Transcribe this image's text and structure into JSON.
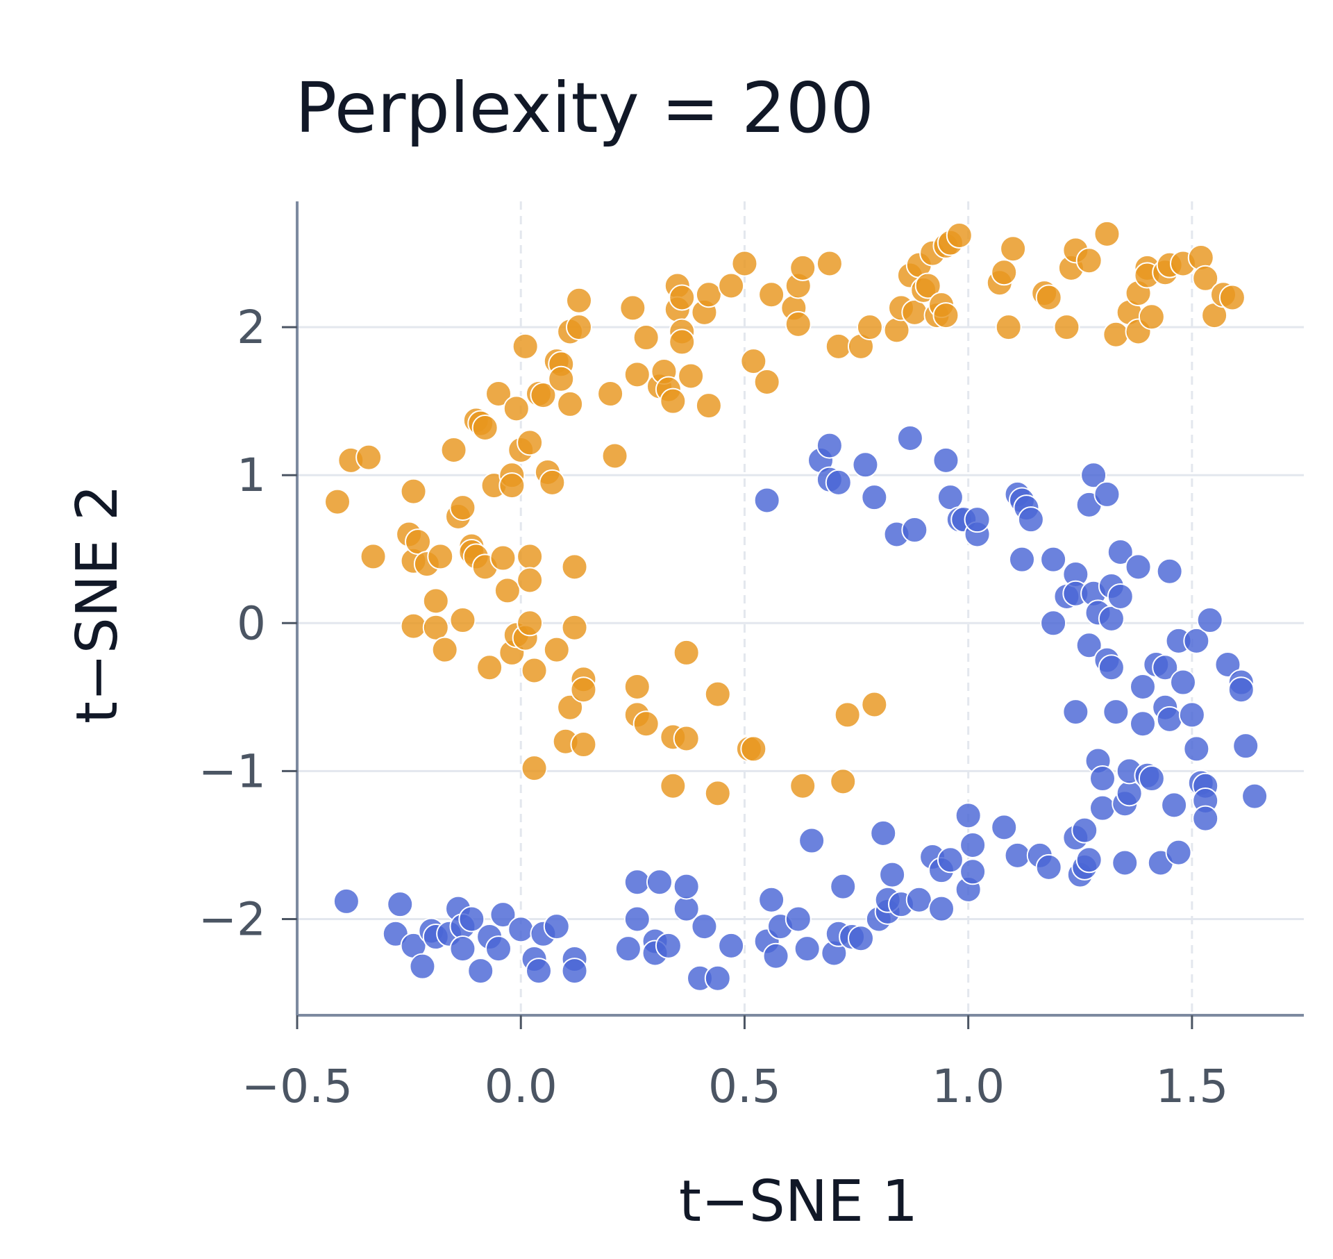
{
  "chart_data": {
    "type": "scatter",
    "title": "Perplexity = 200",
    "xlabel": "t−SNE 1",
    "ylabel": "t−SNE 2",
    "xlim": [
      -0.5,
      1.75
    ],
    "ylim": [
      -2.65,
      2.85
    ],
    "xticks": [
      -0.5,
      0.0,
      0.5,
      1.0,
      1.5
    ],
    "xtick_labels": [
      "−0.5",
      "0.0",
      "0.5",
      "1.0",
      "1.5"
    ],
    "yticks": [
      -2,
      -1,
      0,
      1,
      2
    ],
    "ytick_labels": [
      "−2",
      "−1",
      "0",
      "1",
      "2"
    ],
    "grid": true,
    "series": [
      {
        "color": "#e8961e",
        "points": [
          [
            -0.41,
            0.82
          ],
          [
            -0.38,
            1.1
          ],
          [
            -0.34,
            1.12
          ],
          [
            -0.33,
            0.45
          ],
          [
            -0.25,
            0.6
          ],
          [
            -0.24,
            0.42
          ],
          [
            -0.24,
            0.89
          ],
          [
            -0.23,
            0.55
          ],
          [
            -0.24,
            -0.02
          ],
          [
            -0.21,
            0.4
          ],
          [
            -0.19,
            0.15
          ],
          [
            -0.19,
            -0.03
          ],
          [
            -0.17,
            -0.18
          ],
          [
            -0.18,
            0.45
          ],
          [
            -0.15,
            1.17
          ],
          [
            -0.14,
            0.72
          ],
          [
            -0.13,
            0.78
          ],
          [
            -0.13,
            0.02
          ],
          [
            -0.11,
            0.52
          ],
          [
            -0.11,
            0.48
          ],
          [
            -0.1,
            1.37
          ],
          [
            -0.1,
            0.45
          ],
          [
            -0.09,
            1.35
          ],
          [
            -0.08,
            0.38
          ],
          [
            -0.08,
            1.32
          ],
          [
            -0.07,
            -0.3
          ],
          [
            -0.06,
            0.93
          ],
          [
            -0.05,
            1.55
          ],
          [
            -0.04,
            0.44
          ],
          [
            -0.03,
            0.22
          ],
          [
            -0.02,
            1.0
          ],
          [
            -0.02,
            0.93
          ],
          [
            -0.02,
            -0.2
          ],
          [
            -0.01,
            1.45
          ],
          [
            -0.01,
            -0.08
          ],
          [
            0.0,
            1.17
          ],
          [
            0.01,
            1.87
          ],
          [
            0.01,
            -0.1
          ],
          [
            0.02,
            1.22
          ],
          [
            0.02,
            0.0
          ],
          [
            0.02,
            0.45
          ],
          [
            0.02,
            0.29
          ],
          [
            0.03,
            -0.32
          ],
          [
            0.03,
            -0.98
          ],
          [
            0.04,
            1.55
          ],
          [
            0.05,
            1.54
          ],
          [
            0.06,
            1.02
          ],
          [
            0.07,
            0.95
          ],
          [
            0.08,
            1.77
          ],
          [
            0.08,
            -0.18
          ],
          [
            0.09,
            1.75
          ],
          [
            0.09,
            1.65
          ],
          [
            0.1,
            -0.8
          ],
          [
            0.11,
            1.97
          ],
          [
            0.11,
            1.48
          ],
          [
            0.11,
            -0.57
          ],
          [
            0.12,
            -0.03
          ],
          [
            0.12,
            0.38
          ],
          [
            0.13,
            2.18
          ],
          [
            0.13,
            2.0
          ],
          [
            0.14,
            -0.38
          ],
          [
            0.14,
            -0.45
          ],
          [
            0.14,
            -0.82
          ],
          [
            0.2,
            1.55
          ],
          [
            0.21,
            1.13
          ],
          [
            0.25,
            2.13
          ],
          [
            0.26,
            1.68
          ],
          [
            0.26,
            -0.43
          ],
          [
            0.26,
            -0.62
          ],
          [
            0.28,
            1.93
          ],
          [
            0.28,
            -0.68
          ],
          [
            0.31,
            1.6
          ],
          [
            0.32,
            1.7
          ],
          [
            0.33,
            1.58
          ],
          [
            0.34,
            -0.77
          ],
          [
            0.34,
            -1.1
          ],
          [
            0.34,
            1.5
          ],
          [
            0.35,
            2.28
          ],
          [
            0.35,
            2.12
          ],
          [
            0.36,
            1.97
          ],
          [
            0.36,
            1.9
          ],
          [
            0.36,
            2.2
          ],
          [
            0.37,
            -0.78
          ],
          [
            0.37,
            -0.2
          ],
          [
            0.38,
            1.67
          ],
          [
            0.41,
            2.1
          ],
          [
            0.42,
            2.22
          ],
          [
            0.42,
            1.47
          ],
          [
            0.44,
            -1.15
          ],
          [
            0.44,
            -0.48
          ],
          [
            0.47,
            2.28
          ],
          [
            0.5,
            2.43
          ],
          [
            0.51,
            -0.85
          ],
          [
            0.52,
            -0.85
          ],
          [
            0.52,
            1.77
          ],
          [
            0.55,
            1.63
          ],
          [
            0.56,
            2.22
          ],
          [
            0.61,
            2.13
          ],
          [
            0.62,
            2.28
          ],
          [
            0.62,
            2.02
          ],
          [
            0.63,
            2.4
          ],
          [
            0.63,
            -1.1
          ],
          [
            0.69,
            2.43
          ],
          [
            0.71,
            1.87
          ],
          [
            0.72,
            -1.07
          ],
          [
            0.73,
            -0.62
          ],
          [
            0.76,
            1.87
          ],
          [
            0.78,
            2.0
          ],
          [
            0.79,
            -0.55
          ],
          [
            0.84,
            1.98
          ],
          [
            0.85,
            2.13
          ],
          [
            0.87,
            2.35
          ],
          [
            0.88,
            2.1
          ],
          [
            0.89,
            2.42
          ],
          [
            0.9,
            2.25
          ],
          [
            0.91,
            2.28
          ],
          [
            0.92,
            2.5
          ],
          [
            0.93,
            2.08
          ],
          [
            0.94,
            2.15
          ],
          [
            0.95,
            2.55
          ],
          [
            0.95,
            2.08
          ],
          [
            0.96,
            2.57
          ],
          [
            0.98,
            2.62
          ],
          [
            1.07,
            2.3
          ],
          [
            1.08,
            2.37
          ],
          [
            1.09,
            2.0
          ],
          [
            1.1,
            2.53
          ],
          [
            1.17,
            2.23
          ],
          [
            1.18,
            2.2
          ],
          [
            1.22,
            2.0
          ],
          [
            1.23,
            2.4
          ],
          [
            1.24,
            2.52
          ],
          [
            1.27,
            2.45
          ],
          [
            1.31,
            2.63
          ],
          [
            1.33,
            1.95
          ],
          [
            1.36,
            2.1
          ],
          [
            1.38,
            2.23
          ],
          [
            1.38,
            1.97
          ],
          [
            1.4,
            2.4
          ],
          [
            1.4,
            2.35
          ],
          [
            1.41,
            2.07
          ],
          [
            1.44,
            2.37
          ],
          [
            1.45,
            2.42
          ],
          [
            1.48,
            2.43
          ],
          [
            1.52,
            2.47
          ],
          [
            1.53,
            2.33
          ],
          [
            1.55,
            2.08
          ],
          [
            1.57,
            2.22
          ],
          [
            1.59,
            2.2
          ]
        ]
      },
      {
        "color": "#4a67d6",
        "points": [
          [
            -0.39,
            -1.88
          ],
          [
            -0.27,
            -1.9
          ],
          [
            -0.28,
            -2.1
          ],
          [
            -0.24,
            -2.18
          ],
          [
            -0.22,
            -2.32
          ],
          [
            -0.2,
            -2.08
          ],
          [
            -0.19,
            -2.12
          ],
          [
            -0.16,
            -2.1
          ],
          [
            -0.14,
            -1.93
          ],
          [
            -0.13,
            -2.05
          ],
          [
            -0.13,
            -2.2
          ],
          [
            -0.11,
            -2.0
          ],
          [
            -0.09,
            -2.35
          ],
          [
            -0.07,
            -2.12
          ],
          [
            -0.05,
            -2.2
          ],
          [
            -0.04,
            -1.97
          ],
          [
            0.0,
            -2.07
          ],
          [
            0.03,
            -2.27
          ],
          [
            0.04,
            -2.35
          ],
          [
            0.05,
            -2.1
          ],
          [
            0.08,
            -2.05
          ],
          [
            0.12,
            -2.27
          ],
          [
            0.12,
            -2.35
          ],
          [
            0.24,
            -2.2
          ],
          [
            0.26,
            -1.75
          ],
          [
            0.26,
            -2.0
          ],
          [
            0.3,
            -2.15
          ],
          [
            0.3,
            -2.23
          ],
          [
            0.31,
            -1.75
          ],
          [
            0.33,
            -2.18
          ],
          [
            0.37,
            -1.93
          ],
          [
            0.37,
            -1.78
          ],
          [
            0.4,
            -2.4
          ],
          [
            0.41,
            -2.05
          ],
          [
            0.44,
            -2.4
          ],
          [
            0.47,
            -2.18
          ],
          [
            0.55,
            -2.15
          ],
          [
            0.55,
            0.83
          ],
          [
            0.56,
            -1.87
          ],
          [
            0.57,
            -2.25
          ],
          [
            0.58,
            -2.05
          ],
          [
            0.62,
            -2.0
          ],
          [
            0.64,
            -2.2
          ],
          [
            0.65,
            -1.47
          ],
          [
            0.67,
            1.1
          ],
          [
            0.69,
            0.97
          ],
          [
            0.69,
            1.2
          ],
          [
            0.7,
            -2.23
          ],
          [
            0.71,
            -2.1
          ],
          [
            0.71,
            0.95
          ],
          [
            0.72,
            -1.78
          ],
          [
            0.74,
            -2.12
          ],
          [
            0.77,
            1.07
          ],
          [
            0.76,
            -2.13
          ],
          [
            0.79,
            0.85
          ],
          [
            0.8,
            -2.0
          ],
          [
            0.81,
            -1.42
          ],
          [
            0.82,
            -1.95
          ],
          [
            0.82,
            -1.87
          ],
          [
            0.83,
            -1.7
          ],
          [
            0.84,
            0.6
          ],
          [
            0.85,
            -1.9
          ],
          [
            0.87,
            1.25
          ],
          [
            0.88,
            0.63
          ],
          [
            0.89,
            -1.87
          ],
          [
            0.92,
            -1.58
          ],
          [
            0.94,
            -1.67
          ],
          [
            0.95,
            1.1
          ],
          [
            0.94,
            -1.93
          ],
          [
            0.96,
            -1.6
          ],
          [
            0.96,
            0.85
          ],
          [
            0.98,
            0.7
          ],
          [
            0.99,
            0.7
          ],
          [
            1.0,
            -1.3
          ],
          [
            1.0,
            -1.8
          ],
          [
            1.02,
            0.6
          ],
          [
            1.02,
            0.7
          ],
          [
            1.01,
            -1.5
          ],
          [
            1.01,
            -1.68
          ],
          [
            1.08,
            -1.38
          ],
          [
            1.11,
            -1.57
          ],
          [
            1.11,
            0.87
          ],
          [
            1.12,
            0.43
          ],
          [
            1.12,
            0.83
          ],
          [
            1.13,
            0.78
          ],
          [
            1.14,
            0.7
          ],
          [
            1.16,
            -1.57
          ],
          [
            1.18,
            -1.65
          ],
          [
            1.19,
            0.43
          ],
          [
            1.19,
            0.0
          ],
          [
            1.22,
            0.18
          ],
          [
            1.24,
            0.33
          ],
          [
            1.24,
            0.2
          ],
          [
            1.24,
            -0.6
          ],
          [
            1.24,
            -1.45
          ],
          [
            1.25,
            -1.7
          ],
          [
            1.26,
            -1.65
          ],
          [
            1.26,
            -1.4
          ],
          [
            1.27,
            -1.6
          ],
          [
            1.27,
            0.8
          ],
          [
            1.27,
            -0.15
          ],
          [
            1.28,
            0.2
          ],
          [
            1.28,
            1.0
          ],
          [
            1.29,
            0.07
          ],
          [
            1.29,
            -0.93
          ],
          [
            1.3,
            -1.05
          ],
          [
            1.3,
            -1.25
          ],
          [
            1.31,
            0.87
          ],
          [
            1.31,
            -0.25
          ],
          [
            1.32,
            0.03
          ],
          [
            1.32,
            -0.3
          ],
          [
            1.32,
            0.25
          ],
          [
            1.33,
            -0.6
          ],
          [
            1.34,
            0.18
          ],
          [
            1.34,
            0.48
          ],
          [
            1.35,
            -1.62
          ],
          [
            1.35,
            -1.22
          ],
          [
            1.36,
            -1.15
          ],
          [
            1.36,
            -1.0
          ],
          [
            1.38,
            0.38
          ],
          [
            1.39,
            -0.43
          ],
          [
            1.39,
            -0.68
          ],
          [
            1.4,
            -1.03
          ],
          [
            1.41,
            -1.05
          ],
          [
            1.42,
            -0.28
          ],
          [
            1.43,
            -1.62
          ],
          [
            1.44,
            -0.57
          ],
          [
            1.44,
            -0.3
          ],
          [
            1.45,
            0.35
          ],
          [
            1.45,
            -0.65
          ],
          [
            1.46,
            -1.23
          ],
          [
            1.47,
            -1.55
          ],
          [
            1.47,
            -0.12
          ],
          [
            1.48,
            -0.4
          ],
          [
            1.5,
            -0.62
          ],
          [
            1.51,
            -0.12
          ],
          [
            1.51,
            -0.85
          ],
          [
            1.52,
            -1.08
          ],
          [
            1.53,
            -1.1
          ],
          [
            1.53,
            -1.2
          ],
          [
            1.53,
            -1.32
          ],
          [
            1.54,
            0.02
          ],
          [
            1.58,
            -0.28
          ],
          [
            1.61,
            -0.4
          ],
          [
            1.61,
            -0.45
          ],
          [
            1.62,
            -0.83
          ],
          [
            1.64,
            -1.17
          ]
        ]
      }
    ]
  }
}
